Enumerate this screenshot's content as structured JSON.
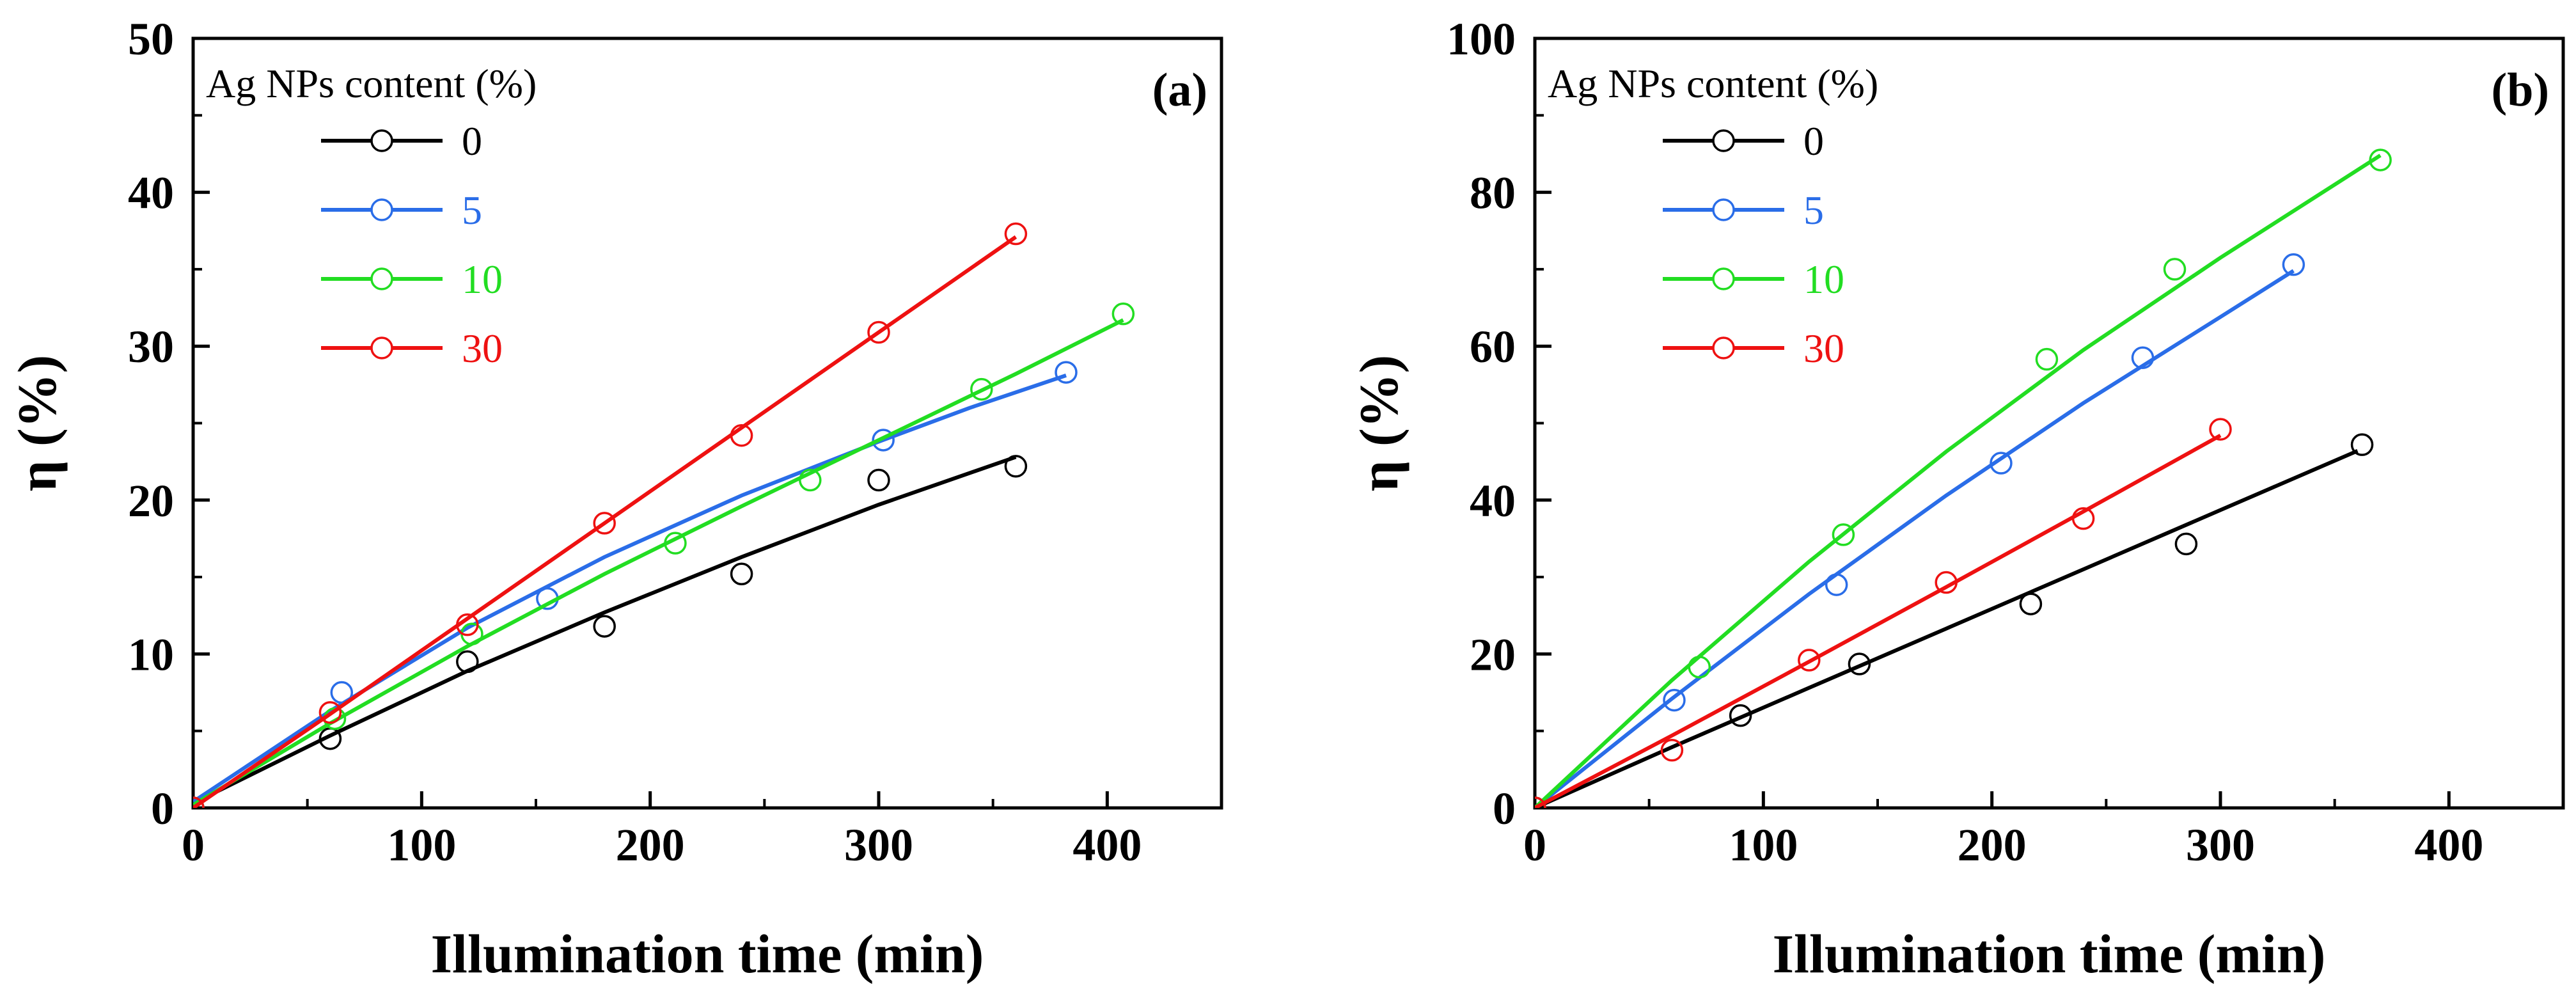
{
  "chart_data": [
    {
      "type": "scatter",
      "panel_label": "(a)",
      "xlabel": "Illumination time (min)",
      "ylabel": "η (%)",
      "xlim": [
        0,
        450
      ],
      "ylim": [
        0,
        50
      ],
      "xticks": [
        0,
        100,
        200,
        300,
        400
      ],
      "yticks": [
        0,
        10,
        20,
        30,
        40,
        50
      ],
      "legend_title": "Ag NPs content (%)",
      "legend_position": "top-left",
      "series": [
        {
          "name": "0",
          "color": "#000000",
          "points": [
            [
              0,
              0
            ],
            [
              60,
              4.5
            ],
            [
              120,
              9.5
            ],
            [
              180,
              11.8
            ],
            [
              240,
              15.2
            ],
            [
              300,
              21.3
            ],
            [
              360,
              22.2
            ]
          ],
          "fit": [
            [
              0,
              0.3
            ],
            [
              60,
              4.7
            ],
            [
              120,
              8.9
            ],
            [
              180,
              12.7
            ],
            [
              240,
              16.3
            ],
            [
              300,
              19.7
            ],
            [
              360,
              22.8
            ]
          ]
        },
        {
          "name": "5",
          "color": "#2a6de8",
          "points": [
            [
              0,
              0
            ],
            [
              65,
              7.5
            ],
            [
              155,
              13.6
            ],
            [
              302,
              23.9
            ],
            [
              382,
              28.3
            ]
          ],
          "fit": [
            [
              0,
              0.4
            ],
            [
              60,
              6.3
            ],
            [
              120,
              11.7
            ],
            [
              180,
              16.3
            ],
            [
              240,
              20.3
            ],
            [
              300,
              23.8
            ],
            [
              340,
              26.0
            ],
            [
              382,
              28.1
            ]
          ]
        },
        {
          "name": "10",
          "color": "#22dd22",
          "points": [
            [
              0,
              0
            ],
            [
              62,
              5.8
            ],
            [
              122,
              11.3
            ],
            [
              211,
              17.2
            ],
            [
              270,
              21.3
            ],
            [
              345,
              27.2
            ],
            [
              407,
              32.1
            ]
          ],
          "fit": [
            [
              0,
              0.2
            ],
            [
              60,
              5.5
            ],
            [
              120,
              10.5
            ],
            [
              180,
              15.2
            ],
            [
              240,
              19.6
            ],
            [
              300,
              23.9
            ],
            [
              360,
              28.2
            ],
            [
              407,
              31.7
            ]
          ]
        },
        {
          "name": "30",
          "color": "#ee1111",
          "points": [
            [
              0,
              0
            ],
            [
              60,
              6.2
            ],
            [
              120,
              11.9
            ],
            [
              180,
              18.5
            ],
            [
              240,
              24.2
            ],
            [
              300,
              30.9
            ],
            [
              360,
              37.3
            ]
          ],
          "fit": [
            [
              0,
              0
            ],
            [
              60,
              6.1
            ],
            [
              120,
              12.3
            ],
            [
              180,
              18.5
            ],
            [
              240,
              24.7
            ],
            [
              300,
              30.9
            ],
            [
              360,
              37.1
            ]
          ]
        }
      ]
    },
    {
      "type": "scatter",
      "panel_label": "(b)",
      "xlabel": "Illumination time (min)",
      "ylabel": "η (%)",
      "xlim": [
        0,
        450
      ],
      "ylim": [
        0,
        100
      ],
      "xticks": [
        0,
        100,
        200,
        300,
        400
      ],
      "yticks": [
        0,
        20,
        40,
        60,
        80,
        100
      ],
      "legend_title": "Ag NPs content (%)",
      "legend_position": "top-left",
      "series": [
        {
          "name": "0",
          "color": "#000000",
          "points": [
            [
              0,
              0
            ],
            [
              90,
              12.0
            ],
            [
              142,
              18.7
            ],
            [
              217,
              26.5
            ],
            [
              285,
              34.3
            ],
            [
              362,
              47.2
            ]
          ],
          "fit": [
            [
              0,
              0
            ],
            [
              60,
              7.9
            ],
            [
              120,
              15.6
            ],
            [
              180,
              23.3
            ],
            [
              240,
              31.0
            ],
            [
              300,
              38.7
            ],
            [
              360,
              46.4
            ]
          ]
        },
        {
          "name": "5",
          "color": "#2a6de8",
          "points": [
            [
              0,
              0
            ],
            [
              61,
              14.0
            ],
            [
              132,
              29.0
            ],
            [
              204,
              44.8
            ],
            [
              266,
              58.5
            ],
            [
              332,
              70.6
            ]
          ],
          "fit": [
            [
              0,
              0
            ],
            [
              60,
              14.2
            ],
            [
              120,
              27.8
            ],
            [
              180,
              40.6
            ],
            [
              240,
              52.6
            ],
            [
              300,
              63.8
            ],
            [
              332,
              69.8
            ]
          ]
        },
        {
          "name": "10",
          "color": "#22dd22",
          "points": [
            [
              0,
              0
            ],
            [
              72,
              18.3
            ],
            [
              135,
              35.5
            ],
            [
              224,
              58.3
            ],
            [
              280,
              70.0
            ],
            [
              370,
              84.2
            ]
          ],
          "fit": [
            [
              0,
              0
            ],
            [
              60,
              16.6
            ],
            [
              120,
              32.0
            ],
            [
              180,
              46.3
            ],
            [
              240,
              59.5
            ],
            [
              300,
              71.5
            ],
            [
              370,
              84.8
            ]
          ]
        },
        {
          "name": "30",
          "color": "#ee1111",
          "points": [
            [
              0,
              0
            ],
            [
              60,
              7.5
            ],
            [
              120,
              19.2
            ],
            [
              180,
              29.3
            ],
            [
              240,
              37.6
            ],
            [
              300,
              49.2
            ]
          ],
          "fit": [
            [
              0,
              0
            ],
            [
              60,
              9.4
            ],
            [
              120,
              19.0
            ],
            [
              180,
              28.7
            ],
            [
              240,
              38.5
            ],
            [
              300,
              48.4
            ]
          ]
        }
      ]
    }
  ]
}
